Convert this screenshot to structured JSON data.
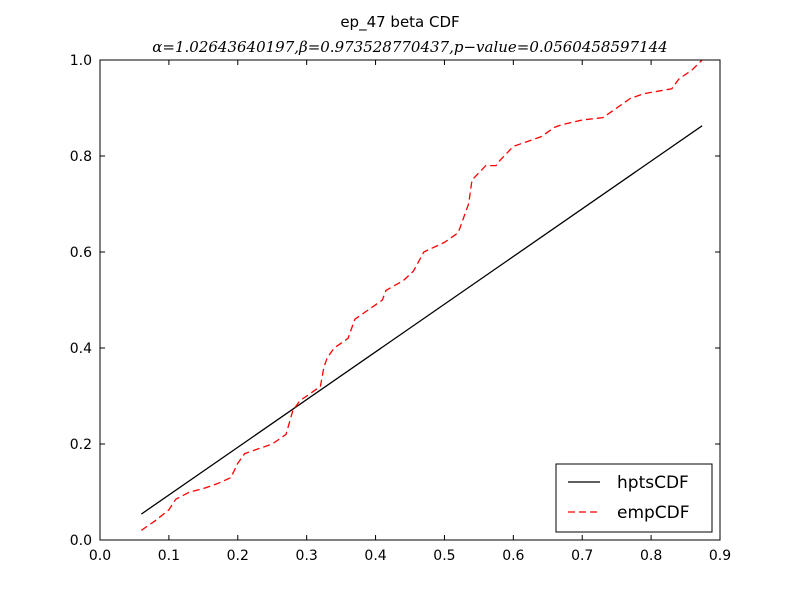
{
  "chart_data": {
    "type": "line",
    "title": "ep_47 beta CDF",
    "subtitle": "α=1.02643640197,β=0.973528770437,p−value=0.0560458597144",
    "xlabel": "",
    "ylabel": "",
    "xlim": [
      0.0,
      0.9
    ],
    "ylim": [
      0.0,
      1.0
    ],
    "xticks": [
      "0.0",
      "0.1",
      "0.2",
      "0.3",
      "0.4",
      "0.5",
      "0.6",
      "0.7",
      "0.8",
      "0.9"
    ],
    "yticks": [
      "0.0",
      "0.2",
      "0.4",
      "0.6",
      "0.8",
      "1.0"
    ],
    "grid": false,
    "legend_position": "bottom-right",
    "series": [
      {
        "name": "hptsCDF",
        "color": "#000000",
        "style": "solid",
        "x": [
          0.06,
          0.874
        ],
        "y": [
          0.054,
          0.863
        ]
      },
      {
        "name": "empCDF",
        "color": "#ff0000",
        "style": "dashed",
        "x": [
          0.06,
          0.08,
          0.1,
          0.11,
          0.13,
          0.15,
          0.17,
          0.19,
          0.2,
          0.21,
          0.23,
          0.25,
          0.27,
          0.28,
          0.29,
          0.3,
          0.32,
          0.325,
          0.33,
          0.34,
          0.36,
          0.37,
          0.39,
          0.41,
          0.415,
          0.44,
          0.455,
          0.47,
          0.5,
          0.52,
          0.53,
          0.535,
          0.54,
          0.56,
          0.575,
          0.58,
          0.6,
          0.62,
          0.64,
          0.66,
          0.67,
          0.7,
          0.73,
          0.75,
          0.77,
          0.79,
          0.81,
          0.83,
          0.84,
          0.86,
          0.874
        ],
        "y": [
          0.02,
          0.04,
          0.063,
          0.085,
          0.1,
          0.107,
          0.117,
          0.13,
          0.16,
          0.18,
          0.19,
          0.2,
          0.22,
          0.27,
          0.29,
          0.3,
          0.32,
          0.36,
          0.38,
          0.4,
          0.42,
          0.46,
          0.48,
          0.5,
          0.52,
          0.54,
          0.56,
          0.6,
          0.62,
          0.64,
          0.68,
          0.7,
          0.75,
          0.78,
          0.78,
          0.79,
          0.82,
          0.83,
          0.84,
          0.86,
          0.865,
          0.875,
          0.88,
          0.9,
          0.92,
          0.93,
          0.935,
          0.94,
          0.96,
          0.98,
          1.0
        ]
      }
    ]
  }
}
